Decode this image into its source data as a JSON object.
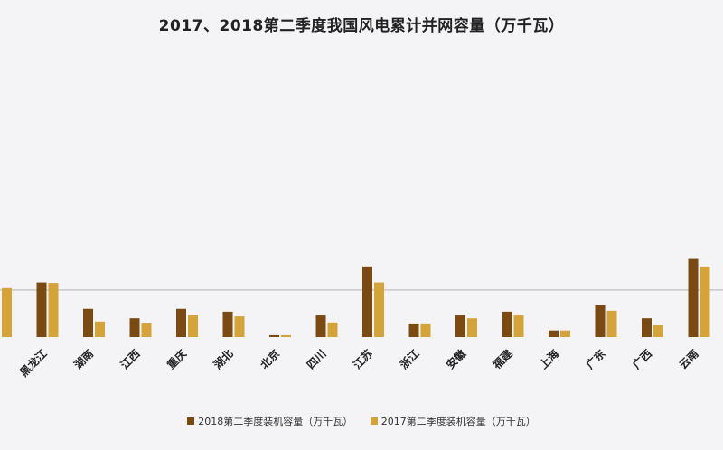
{
  "chart_data": {
    "type": "bar",
    "title": "2017、2018第二季度我国风电累计并网容量（万千瓦）",
    "xlabel": "",
    "ylabel": "",
    "ylim": [
      0,
      3100
    ],
    "grid": true,
    "legend_position": "bottom",
    "categories": [
      "",
      "黑龙江",
      "湖南",
      "江西",
      "重庆",
      "湖北",
      "北京",
      "四川",
      "江苏",
      "浙江",
      "安徽",
      "福建",
      "上海",
      "广东",
      "广西",
      "云南"
    ],
    "series": [
      {
        "name": "2018第二季度装机容量（万千瓦）",
        "color": "#7a4a12",
        "values": [
          null,
          580,
          300,
          200,
          300,
          270,
          20,
          230,
          750,
          135,
          230,
          270,
          70,
          340,
          200,
          830
        ]
      },
      {
        "name": "2017第二季度装机容量（万千瓦）",
        "color": "#d4a33a",
        "values": [
          520,
          575,
          165,
          145,
          230,
          220,
          20,
          155,
          580,
          135,
          200,
          230,
          70,
          280,
          125,
          750
        ]
      }
    ]
  }
}
